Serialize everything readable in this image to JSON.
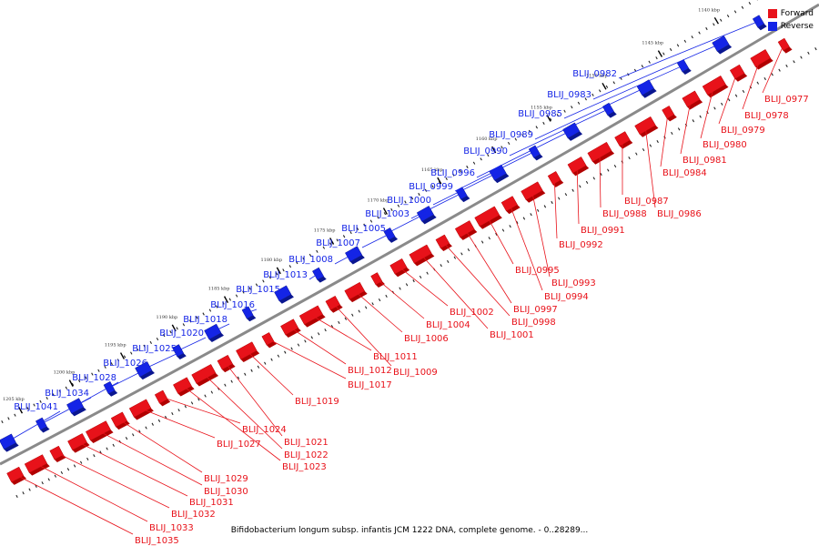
{
  "colors": {
    "forward": "#e8121a",
    "reverse": "#1424e6"
  },
  "legend": {
    "forward": "Forward",
    "reverse": "Reverse"
  },
  "caption": "Bifidobacterium longum subsp. infantis JCM 1222 DNA, complete genome. - 0..28289...",
  "ticks": [
    "1135 kbp",
    "1140 kbp",
    "1145 kbp",
    "1150 kbp",
    "1155 kbp",
    "1160 kbp",
    "1165 kbp",
    "1170 kbp",
    "1175 kbp",
    "1180 kbp",
    "1185 kbp",
    "1190 kbp",
    "1195 kbp",
    "1200 kbp",
    "1205 kbp"
  ],
  "reverse_genes": [
    "BLIJ_0982",
    "BLIJ_0983",
    "BLIJ_0985",
    "BLIJ_0989",
    "BLIJ_0990",
    "BLIJ_0996",
    "BLIJ_0999",
    "BLIJ_1000",
    "BLIJ_1003",
    "BLIJ_1005",
    "BLIJ_1007",
    "BLIJ_1008",
    "BLIJ_1013",
    "BLIJ_1015",
    "BLIJ_1016",
    "BLIJ_1018",
    "BLIJ_1020",
    "BLIJ_1025",
    "BLIJ_1026",
    "BLIJ_1028",
    "BLIJ_1034",
    "BLIJ_1041"
  ],
  "forward_genes": [
    "BLIJ_0977",
    "BLIJ_0978",
    "BLIJ_0979",
    "BLIJ_0980",
    "BLIJ_0981",
    "BLIJ_0984",
    "BLIJ_0986",
    "BLIJ_0987",
    "BLIJ_0988",
    "BLIJ_0991",
    "BLIJ_0992",
    "BLIJ_0993",
    "BLIJ_0994",
    "BLIJ_0995",
    "BLIJ_0997",
    "BLIJ_0998",
    "BLIJ_1001",
    "BLIJ_1002",
    "BLIJ_1004",
    "BLIJ_1006",
    "BLIJ_1009",
    "BLIJ_1011",
    "BLIJ_1012",
    "BLIJ_1017",
    "BLIJ_1019",
    "BLIJ_1021",
    "BLIJ_1022",
    "BLIJ_1023",
    "BLIJ_1024",
    "BLIJ_1027",
    "BLIJ_1029",
    "BLIJ_1030",
    "BLIJ_1031",
    "BLIJ_1032",
    "BLIJ_1033",
    "BLIJ_1035"
  ]
}
